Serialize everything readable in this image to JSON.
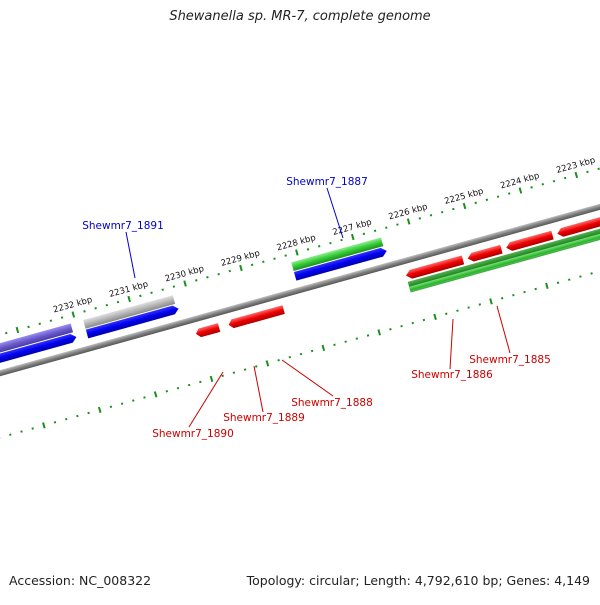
{
  "title": "Shewanella sp. MR-7, complete genome",
  "footer": {
    "accession": "Accession: NC_008322",
    "summary": "Topology: circular; Length: 4,792,610 bp; Genes: 4,149"
  },
  "colors": {
    "backbone": "#808080",
    "tick_forward": "#1a8f1a",
    "tick_reverse": "#1a8f1a",
    "forward_label": "#0000cc",
    "reverse_label": "#cc0000",
    "gene_red": "#ee0000",
    "gene_blue": "#0000ee",
    "gene_purple": "#6a5acd",
    "gene_grey": "#a9a9a9",
    "gene_green_light": "#33cc33",
    "gene_green_dark": "#228b22"
  },
  "kbp_labels": [
    "2232 kbp",
    "2231 kbp",
    "2230 kbp",
    "2229 kbp",
    "2228 kbp",
    "2227 kbp",
    "2226 kbp",
    "2225 kbp",
    "2224 kbp",
    "2223 kbp"
  ],
  "gene_labels": {
    "forward": [
      "Shewmr7_1891",
      "Shewmr7_1887"
    ],
    "reverse": [
      "Shewmr7_1890",
      "Shewmr7_1889",
      "Shewmr7_1888",
      "Shewmr7_1886",
      "Shewmr7_1885"
    ]
  }
}
